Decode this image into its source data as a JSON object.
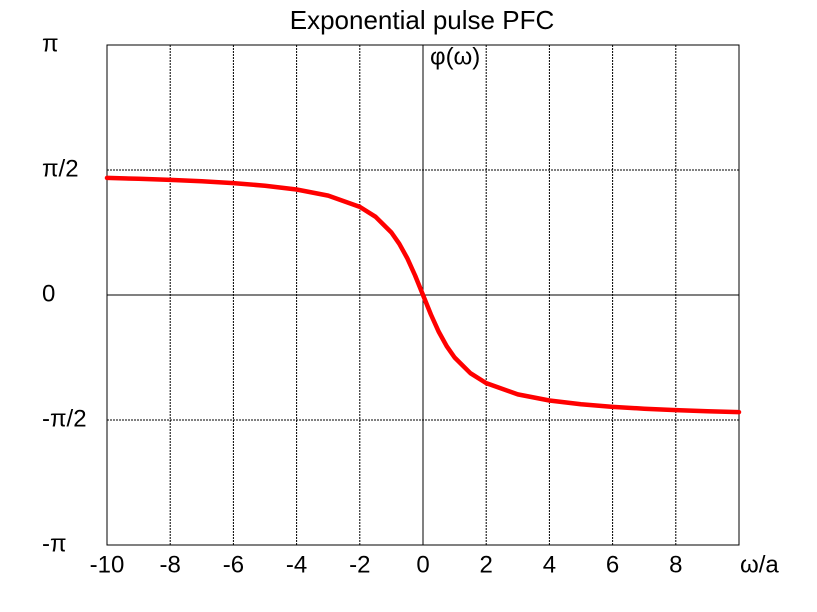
{
  "chart_data": {
    "type": "line",
    "title": "Exponential pulse PFC",
    "xlabel": "ω/a",
    "ylabel": "φ(ω)",
    "x": [
      -10,
      -9,
      -8,
      -7,
      -6,
      -5,
      -4,
      -3,
      -2,
      -1.5,
      -1,
      -0.75,
      -0.5,
      -0.25,
      0,
      0.25,
      0.5,
      0.75,
      1,
      1.5,
      2,
      3,
      4,
      5,
      6,
      7,
      8,
      9,
      10
    ],
    "values": [
      1.4711,
      1.4601,
      1.4464,
      1.4289,
      1.4056,
      1.3734,
      1.3258,
      1.249,
      1.1071,
      0.9828,
      0.7854,
      0.6435,
      0.4636,
      0.245,
      0,
      -0.245,
      -0.4636,
      -0.6435,
      -0.7854,
      -0.9828,
      -1.1071,
      -1.249,
      -1.3258,
      -1.3734,
      -1.4056,
      -1.4289,
      -1.4464,
      -1.4601,
      -1.4711
    ],
    "color": "#ff0000",
    "xlim": [
      -10,
      10
    ],
    "xticks": [
      -10,
      -8,
      -6,
      -4,
      -2,
      0,
      2,
      4,
      6,
      8
    ],
    "ylim": [
      -3.1416,
      3.1416
    ],
    "yticks": [
      {
        "value": 3.1416,
        "label": "π"
      },
      {
        "value": 1.5708,
        "label": "π/2"
      },
      0,
      {
        "value": -1.5708,
        "label": "-π/2"
      },
      {
        "value": -3.1416,
        "label": "-π"
      }
    ],
    "grid": true
  }
}
